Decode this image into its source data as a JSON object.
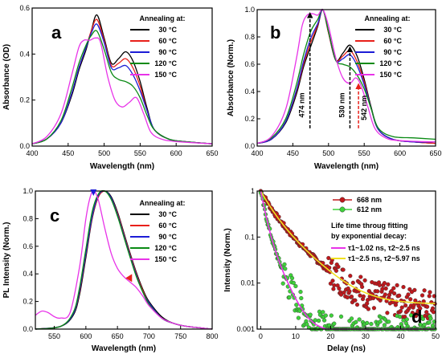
{
  "chart_data": [
    {
      "panel": "a",
      "type": "line",
      "xlabel": "Wavelength (nm)",
      "ylabel": "Absorbance (OD)",
      "xlim": [
        400,
        650
      ],
      "ylim": [
        0,
        0.6
      ],
      "xticks": [
        400,
        450,
        500,
        550,
        600,
        650
      ],
      "yticks": [
        0.0,
        0.2,
        0.4,
        0.6
      ],
      "ytick_labels": [
        "0.0",
        "0.2",
        "0.4",
        "0.6"
      ],
      "legend_title": "Annealing at:",
      "legend_position": "top-right",
      "series": [
        {
          "name": "30 °C",
          "color": "#000000",
          "x": [
            400,
            420,
            440,
            455,
            465,
            475,
            482,
            490,
            500,
            510,
            520,
            530,
            540,
            550,
            560,
            570,
            590,
            610,
            650
          ],
          "y": [
            0.01,
            0.03,
            0.1,
            0.22,
            0.33,
            0.42,
            0.5,
            0.57,
            0.47,
            0.36,
            0.38,
            0.41,
            0.37,
            0.28,
            0.16,
            0.07,
            0.03,
            0.02,
            0.01
          ]
        },
        {
          "name": "60 °C",
          "color": "#e8201a",
          "x": [
            400,
            420,
            440,
            455,
            465,
            475,
            482,
            490,
            500,
            510,
            520,
            530,
            540,
            550,
            560,
            570,
            590,
            610,
            650
          ],
          "y": [
            0.01,
            0.03,
            0.1,
            0.23,
            0.34,
            0.43,
            0.5,
            0.55,
            0.46,
            0.35,
            0.36,
            0.38,
            0.34,
            0.26,
            0.15,
            0.07,
            0.03,
            0.02,
            0.01
          ]
        },
        {
          "name": "90 °C",
          "color": "#1c1cd6",
          "x": [
            400,
            420,
            440,
            455,
            465,
            475,
            482,
            490,
            500,
            510,
            520,
            530,
            540,
            550,
            560,
            570,
            590,
            610,
            650
          ],
          "y": [
            0.01,
            0.03,
            0.1,
            0.23,
            0.34,
            0.43,
            0.49,
            0.53,
            0.45,
            0.34,
            0.34,
            0.35,
            0.31,
            0.24,
            0.15,
            0.07,
            0.03,
            0.02,
            0.01
          ]
        },
        {
          "name": "120 °C",
          "color": "#0a8a14",
          "x": [
            400,
            420,
            440,
            455,
            465,
            475,
            482,
            490,
            500,
            510,
            520,
            530,
            540,
            550,
            560,
            570,
            590,
            610,
            650
          ],
          "y": [
            0.01,
            0.03,
            0.11,
            0.25,
            0.36,
            0.44,
            0.48,
            0.5,
            0.42,
            0.32,
            0.29,
            0.28,
            0.26,
            0.21,
            0.13,
            0.07,
            0.03,
            0.02,
            0.01
          ]
        },
        {
          "name": "150 °C",
          "color": "#e833e8",
          "x": [
            400,
            420,
            440,
            455,
            465,
            472,
            480,
            488,
            495,
            505,
            515,
            525,
            535,
            545,
            555,
            565,
            580,
            600,
            650
          ],
          "y": [
            0.01,
            0.04,
            0.14,
            0.31,
            0.43,
            0.46,
            0.46,
            0.47,
            0.45,
            0.3,
            0.2,
            0.17,
            0.19,
            0.21,
            0.14,
            0.06,
            0.03,
            0.02,
            0.01
          ]
        }
      ]
    },
    {
      "panel": "b",
      "type": "line",
      "xlabel": "Wavelength (nm)",
      "ylabel": "Absorbance (Norm.)",
      "xlim": [
        400,
        650
      ],
      "ylim": [
        0,
        1.0
      ],
      "xticks": [
        400,
        450,
        500,
        550,
        600,
        650
      ],
      "yticks": [
        0.0,
        0.2,
        0.4,
        0.6,
        0.8,
        1.0
      ],
      "ytick_labels": [
        "0.0",
        "0.2",
        "0.4",
        "0.6",
        "0.8",
        "1.0"
      ],
      "legend_title": "Annealing at:",
      "legend_position": "top-right",
      "annotations": [
        {
          "text": "474 nm",
          "x": 474,
          "arrow_color": "#000000"
        },
        {
          "text": "530 nm",
          "x": 530,
          "arrow_color": "#000000"
        },
        {
          "text": "542 nm",
          "x": 542,
          "arrow_color": "#e8201a"
        }
      ],
      "series": [
        {
          "name": "30 °C",
          "color": "#000000",
          "x": [
            400,
            420,
            440,
            455,
            465,
            475,
            485,
            492,
            500,
            510,
            520,
            530,
            540,
            550,
            560,
            570,
            590,
            620,
            650
          ],
          "y": [
            0.02,
            0.05,
            0.17,
            0.38,
            0.58,
            0.73,
            0.88,
            1.0,
            0.83,
            0.63,
            0.68,
            0.74,
            0.66,
            0.49,
            0.28,
            0.12,
            0.05,
            0.03,
            0.02
          ]
        },
        {
          "name": "60 °C",
          "color": "#e8201a",
          "x": [
            400,
            420,
            440,
            455,
            465,
            475,
            485,
            492,
            500,
            510,
            520,
            530,
            540,
            550,
            560,
            570,
            590,
            620,
            650
          ],
          "y": [
            0.02,
            0.05,
            0.18,
            0.4,
            0.6,
            0.76,
            0.89,
            1.0,
            0.83,
            0.63,
            0.66,
            0.7,
            0.62,
            0.47,
            0.27,
            0.12,
            0.05,
            0.03,
            0.02
          ]
        },
        {
          "name": "90 °C",
          "color": "#1c1cd6",
          "x": [
            400,
            420,
            440,
            455,
            465,
            475,
            485,
            492,
            500,
            510,
            520,
            530,
            540,
            550,
            560,
            570,
            590,
            620,
            650
          ],
          "y": [
            0.02,
            0.05,
            0.18,
            0.41,
            0.62,
            0.79,
            0.9,
            1.0,
            0.84,
            0.63,
            0.64,
            0.67,
            0.59,
            0.45,
            0.27,
            0.12,
            0.05,
            0.03,
            0.03
          ]
        },
        {
          "name": "120 °C",
          "color": "#0a8a14",
          "x": [
            400,
            420,
            440,
            455,
            465,
            475,
            485,
            492,
            500,
            510,
            520,
            530,
            540,
            550,
            560,
            570,
            590,
            620,
            650
          ],
          "y": [
            0.02,
            0.06,
            0.2,
            0.45,
            0.67,
            0.84,
            0.93,
            1.0,
            0.84,
            0.63,
            0.6,
            0.58,
            0.52,
            0.42,
            0.27,
            0.13,
            0.07,
            0.06,
            0.05
          ]
        },
        {
          "name": "150 °C",
          "color": "#e833e8",
          "x": [
            400,
            420,
            440,
            455,
            463,
            470,
            478,
            485,
            492,
            500,
            510,
            520,
            530,
            538,
            545,
            555,
            565,
            580,
            600,
            650
          ],
          "y": [
            0.02,
            0.07,
            0.27,
            0.64,
            0.88,
            0.96,
            0.97,
            0.96,
            1.0,
            0.88,
            0.65,
            0.5,
            0.46,
            0.5,
            0.45,
            0.29,
            0.13,
            0.06,
            0.04,
            0.03
          ]
        }
      ]
    },
    {
      "panel": "c",
      "type": "line",
      "xlabel": "Wavelength (nm)",
      "ylabel": "PL Intensity (Norm.)",
      "xlim": [
        520,
        800
      ],
      "ylim": [
        0,
        1.0
      ],
      "xticks": [
        550,
        600,
        650,
        700,
        750,
        800
      ],
      "yticks": [
        0.0,
        0.2,
        0.4,
        0.6,
        0.8,
        1.0
      ],
      "ytick_labels": [
        "0.0",
        "0.2",
        "0.4",
        "0.6",
        "0.8",
        "1.0"
      ],
      "legend_title": "Annealing at:",
      "legend_position": "top-right",
      "annotations": [
        {
          "marker": "triangle-down",
          "x": 612,
          "color": "#1c1cd6"
        },
        {
          "marker": "triangle-left",
          "x": 668,
          "color": "#e8201a"
        }
      ],
      "series": [
        {
          "name": "30 °C",
          "color": "#000000",
          "x": [
            520,
            560,
            580,
            590,
            600,
            610,
            620,
            630,
            640,
            650,
            660,
            670,
            680,
            690,
            700,
            720,
            740,
            760,
            800
          ],
          "y": [
            0.0,
            0.02,
            0.1,
            0.25,
            0.52,
            0.8,
            0.96,
            1.0,
            0.96,
            0.85,
            0.7,
            0.55,
            0.41,
            0.29,
            0.2,
            0.09,
            0.04,
            0.02,
            0.0
          ]
        },
        {
          "name": "60 °C",
          "color": "#e8201a",
          "x": [
            520,
            560,
            580,
            590,
            600,
            610,
            620,
            630,
            640,
            650,
            660,
            670,
            680,
            690,
            700,
            720,
            740,
            760,
            800
          ],
          "y": [
            0.0,
            0.02,
            0.11,
            0.27,
            0.54,
            0.81,
            0.96,
            1.0,
            0.95,
            0.84,
            0.69,
            0.54,
            0.4,
            0.28,
            0.19,
            0.08,
            0.04,
            0.02,
            0.0
          ]
        },
        {
          "name": "90 °C",
          "color": "#1c1cd6",
          "x": [
            520,
            560,
            580,
            590,
            600,
            610,
            620,
            630,
            640,
            650,
            660,
            670,
            680,
            690,
            700,
            720,
            740,
            760,
            800
          ],
          "y": [
            0.0,
            0.02,
            0.11,
            0.28,
            0.55,
            0.82,
            0.97,
            1.0,
            0.95,
            0.83,
            0.68,
            0.53,
            0.39,
            0.27,
            0.19,
            0.08,
            0.04,
            0.02,
            0.0
          ]
        },
        {
          "name": "120 °C",
          "color": "#0a8a14",
          "x": [
            520,
            560,
            580,
            590,
            600,
            610,
            620,
            630,
            640,
            650,
            660,
            670,
            680,
            690,
            700,
            720,
            740,
            760,
            800
          ],
          "y": [
            0.0,
            0.02,
            0.12,
            0.3,
            0.58,
            0.85,
            0.98,
            1.0,
            0.94,
            0.82,
            0.67,
            0.52,
            0.38,
            0.27,
            0.18,
            0.08,
            0.04,
            0.02,
            0.0
          ]
        },
        {
          "name": "150 °C",
          "color": "#e833e8",
          "x": [
            520,
            530,
            540,
            550,
            560,
            575,
            590,
            600,
            607,
            613,
            620,
            630,
            640,
            650,
            660,
            670,
            680,
            690,
            700,
            720,
            740,
            760,
            800
          ],
          "y": [
            0.1,
            0.13,
            0.12,
            0.09,
            0.08,
            0.12,
            0.45,
            0.8,
            0.96,
            1.0,
            0.93,
            0.73,
            0.55,
            0.44,
            0.38,
            0.34,
            0.3,
            0.24,
            0.17,
            0.08,
            0.04,
            0.02,
            0.0
          ]
        }
      ]
    },
    {
      "panel": "d",
      "type": "scatter",
      "xlabel": "Delay (ns)",
      "ylabel": "Intensity (Norm.)",
      "xlim": [
        -1,
        50
      ],
      "ylim": [
        0.001,
        1
      ],
      "yscale": "log",
      "xticks": [
        0,
        10,
        20,
        30,
        40,
        50
      ],
      "yticks": [
        0.001,
        0.01,
        0.1,
        1
      ],
      "ytick_labels": [
        "0.001",
        "0.01",
        "0.1",
        "1"
      ],
      "legend_position": "top-right",
      "fit_heading": [
        "Life time throug fitting",
        "by exponential decay:"
      ],
      "series": [
        {
          "name": "668 nm",
          "color": "#c0181c",
          "marker": "circle",
          "fit": {
            "a1": 0.6,
            "t1": 2.5,
            "t2": 5.97,
            "floor": 0.0035
          }
        },
        {
          "name": "612 nm",
          "color": "#3ed23a",
          "marker": "circle",
          "fit": {
            "a1": 0.8,
            "t1": 1.02,
            "t2": 2.5,
            "floor": 0.0009
          }
        }
      ],
      "fits": [
        {
          "label": "τ1~1.02 ns, τ2~2.5 ns",
          "color": "#e833e8"
        },
        {
          "label": "τ1~2.5 ns, τ2~5.97 ns",
          "color": "#f0e020"
        }
      ]
    }
  ]
}
